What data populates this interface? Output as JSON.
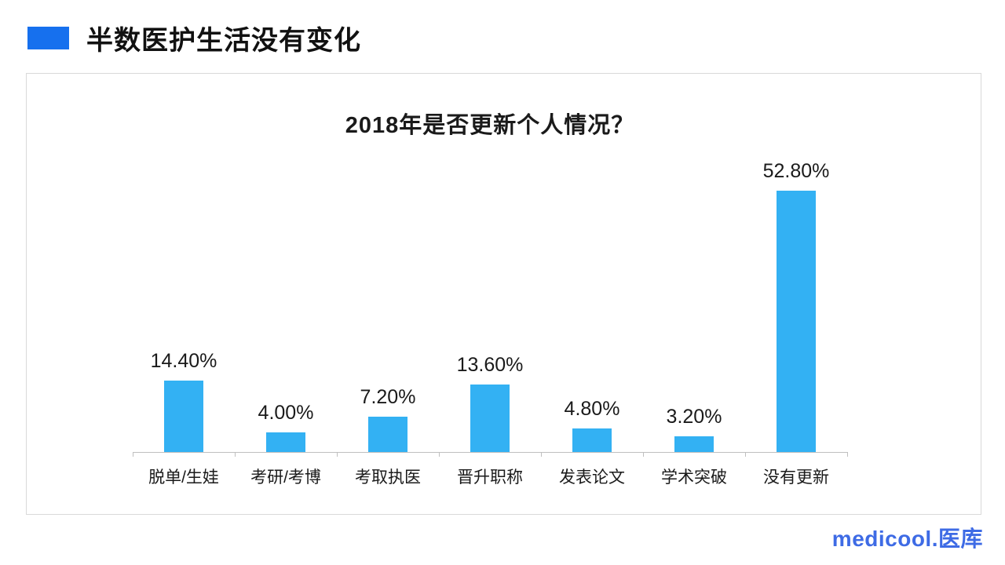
{
  "header": {
    "title": "半数医护生活没有变化",
    "accent_color": "#1670EE"
  },
  "chart_data": {
    "type": "bar",
    "title": "2018年是否更新个人情况？",
    "categories": [
      "脱单/生娃",
      "考研/考博",
      "考取执医",
      "晋升职称",
      "发表论文",
      "学术突破",
      "没有更新"
    ],
    "values": [
      14.4,
      4.0,
      7.2,
      13.6,
      4.8,
      3.2,
      52.8
    ],
    "value_labels": [
      "14.40%",
      "4.00%",
      "7.20%",
      "13.60%",
      "4.80%",
      "3.20%",
      "52.80%"
    ],
    "bar_color": "#33B1F3",
    "axis_color": "#BFBFBF",
    "ylim": [
      0,
      56
    ],
    "grid": false,
    "legend_position": "none",
    "value_label_position": "above bars"
  },
  "footer": {
    "logo_text": "medicool.医库",
    "logo_color": "#3E6BE5"
  }
}
